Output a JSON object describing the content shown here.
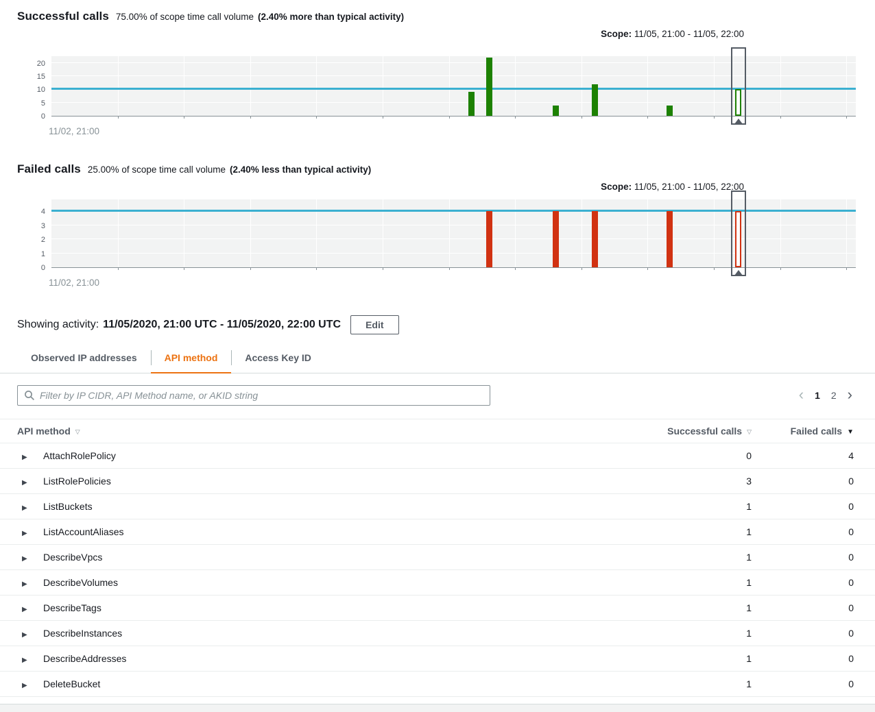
{
  "colors": {
    "success_green": "#1d8102",
    "failure_red": "#d13212",
    "baseline_blue": "#3bb0d1",
    "active_tab_orange": "#ec7211",
    "scope_box_gray": "#545b64"
  },
  "icons": {
    "sort_unsorted": "▽",
    "sort_desc": "▼",
    "expand_row": "▶",
    "page_prev": "‹",
    "page_next": "›"
  },
  "successful_section": {
    "title": "Successful calls",
    "subtitle": "75.00% of scope time call volume",
    "subtitle_emphasis": "(2.40% more than typical activity)",
    "scope_prefix": "Scope:",
    "scope_range": "11/05, 21:00 - 11/05, 22:00",
    "x_axis_start_label": "11/02, 21:00"
  },
  "failed_section": {
    "title": "Failed calls",
    "subtitle": "25.00% of scope time call volume",
    "subtitle_emphasis": "(2.40% less than typical activity)",
    "scope_prefix": "Scope:",
    "scope_range": "11/05, 21:00 - 11/05, 22:00",
    "x_axis_start_label": "11/02, 21:00"
  },
  "chart_data": [
    {
      "type": "bar",
      "title": "Successful calls",
      "name": "successful-calls",
      "bar_color": "#1d8102",
      "baseline_label": "typical activity",
      "baseline_value": 10,
      "ylim": [
        0,
        22.5
      ],
      "yticks": [
        0,
        5,
        10,
        15,
        20
      ],
      "x_axis_start": "11/02, 21:00",
      "x_hours_total": 85,
      "x_tick_interval_hours": 7,
      "bars": [
        {
          "hour": 44.4,
          "value": 9
        },
        {
          "hour": 46.3,
          "value": 22
        },
        {
          "hour": 53.3,
          "value": 4
        },
        {
          "hour": 57.4,
          "value": 12
        },
        {
          "hour": 65.3,
          "value": 4
        }
      ],
      "scope_window": {
        "hour_center": 72.6,
        "value": 10,
        "label": "11/05, 21:00 - 11/05, 22:00"
      }
    },
    {
      "type": "bar",
      "title": "Failed calls",
      "name": "failed-calls",
      "bar_color": "#d13212",
      "baseline_label": "typical activity",
      "baseline_value": 4,
      "ylim": [
        0,
        4.85
      ],
      "yticks": [
        0,
        1,
        2,
        3,
        4
      ],
      "x_axis_start": "11/02, 21:00",
      "x_hours_total": 85,
      "x_tick_interval_hours": 7,
      "bars": [
        {
          "hour": 46.3,
          "value": 4
        },
        {
          "hour": 53.3,
          "value": 4
        },
        {
          "hour": 57.4,
          "value": 4
        },
        {
          "hour": 65.3,
          "value": 4
        }
      ],
      "scope_window": {
        "hour_center": 72.6,
        "value": 4,
        "label": "11/05, 21:00 - 11/05, 22:00"
      }
    }
  ],
  "activity_bar": {
    "label": "Showing activity:",
    "range": "11/05/2020, 21:00 UTC - 11/05/2020, 22:00 UTC",
    "edit_button": "Edit"
  },
  "tabs": [
    {
      "label": "Observed IP addresses",
      "active": false
    },
    {
      "label": "API method",
      "active": true
    },
    {
      "label": "Access Key ID",
      "active": false
    }
  ],
  "filter": {
    "placeholder": "Filter by IP CIDR, API Method name, or AKID string",
    "value": ""
  },
  "pagination": {
    "prev_enabled": false,
    "pages": [
      "1",
      "2"
    ],
    "current_page": "1"
  },
  "table": {
    "columns": [
      {
        "label": "API method",
        "sort": "unsorted"
      },
      {
        "label": "Successful calls",
        "sort": "unsorted"
      },
      {
        "label": "Failed calls",
        "sort": "desc"
      }
    ],
    "rows": [
      {
        "method": "AttachRolePolicy",
        "successful_calls": "0",
        "failed_calls": "4"
      },
      {
        "method": "ListRolePolicies",
        "successful_calls": "3",
        "failed_calls": "0"
      },
      {
        "method": "ListBuckets",
        "successful_calls": "1",
        "failed_calls": "0"
      },
      {
        "method": "ListAccountAliases",
        "successful_calls": "1",
        "failed_calls": "0"
      },
      {
        "method": "DescribeVpcs",
        "successful_calls": "1",
        "failed_calls": "0"
      },
      {
        "method": "DescribeVolumes",
        "successful_calls": "1",
        "failed_calls": "0"
      },
      {
        "method": "DescribeTags",
        "successful_calls": "1",
        "failed_calls": "0"
      },
      {
        "method": "DescribeInstances",
        "successful_calls": "1",
        "failed_calls": "0"
      },
      {
        "method": "DescribeAddresses",
        "successful_calls": "1",
        "failed_calls": "0"
      },
      {
        "method": "DeleteBucket",
        "successful_calls": "1",
        "failed_calls": "0"
      }
    ]
  }
}
